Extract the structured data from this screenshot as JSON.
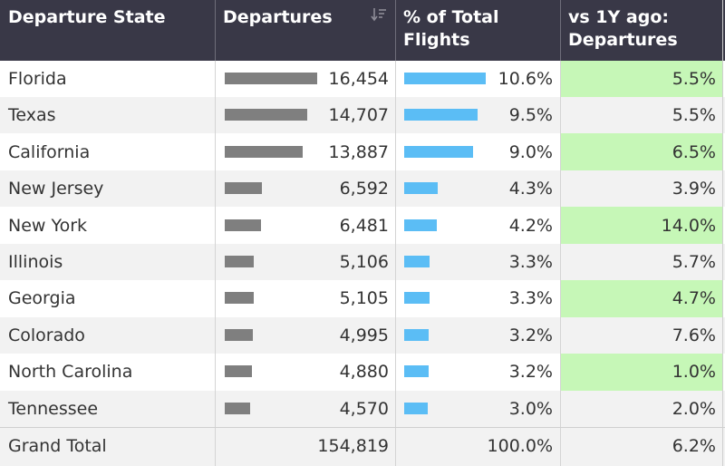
{
  "chart_data": {
    "type": "table",
    "columns": [
      "Departure State",
      "Departures",
      "% of Total\nFlights",
      "vs 1Y ago:\nDepartures"
    ],
    "rows": [
      {
        "state": "Florida",
        "departures": 16454,
        "departures_label": "16,454",
        "pct": 10.6,
        "pct_label": "10.6%",
        "yoy_label": "5.5%"
      },
      {
        "state": "Texas",
        "departures": 14707,
        "departures_label": "14,707",
        "pct": 9.5,
        "pct_label": "9.5%",
        "yoy_label": "5.5%"
      },
      {
        "state": "California",
        "departures": 13887,
        "departures_label": "13,887",
        "pct": 9.0,
        "pct_label": "9.0%",
        "yoy_label": "6.5%"
      },
      {
        "state": "New Jersey",
        "departures": 6592,
        "departures_label": "6,592",
        "pct": 4.3,
        "pct_label": "4.3%",
        "yoy_label": "3.9%"
      },
      {
        "state": "New York",
        "departures": 6481,
        "departures_label": "6,481",
        "pct": 4.2,
        "pct_label": "4.2%",
        "yoy_label": "14.0%"
      },
      {
        "state": "Illinois",
        "departures": 5106,
        "departures_label": "5,106",
        "pct": 3.3,
        "pct_label": "3.3%",
        "yoy_label": "5.7%"
      },
      {
        "state": "Georgia",
        "departures": 5105,
        "departures_label": "5,105",
        "pct": 3.3,
        "pct_label": "3.3%",
        "yoy_label": "4.7%"
      },
      {
        "state": "Colorado",
        "departures": 4995,
        "departures_label": "4,995",
        "pct": 3.2,
        "pct_label": "3.2%",
        "yoy_label": "7.6%"
      },
      {
        "state": "North Carolina",
        "departures": 4880,
        "departures_label": "4,880",
        "pct": 3.2,
        "pct_label": "3.2%",
        "yoy_label": "1.0%"
      },
      {
        "state": "Tennessee",
        "departures": 4570,
        "departures_label": "4,570",
        "pct": 3.0,
        "pct_label": "3.0%",
        "yoy_label": "2.0%"
      }
    ],
    "total": {
      "label": "Grand Total",
      "departures_label": "154,819",
      "pct_label": "100.0%",
      "yoy_label": "6.2%"
    },
    "departures_max": 16454,
    "pct_max": 10.6
  },
  "colors": {
    "header_bg": "#393847",
    "departures_bar": "#7f7f7f",
    "pct_bar": "#5bbdf5",
    "yoy_highlight": "#c6f7b7"
  },
  "icons": {
    "sort": "sort-descending-icon"
  }
}
